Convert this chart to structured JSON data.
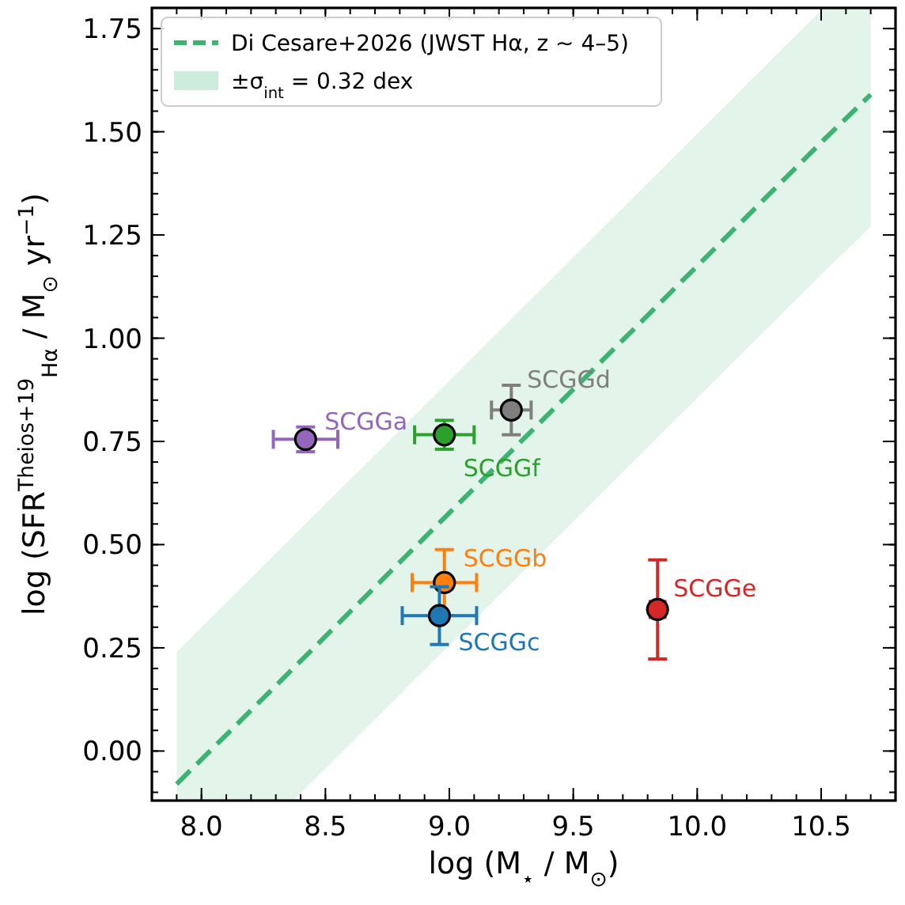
{
  "chart_data": {
    "type": "scatter",
    "xlabel": "log (M$_{⋆}$ / M$_{⊙}$)",
    "ylabel": "log (SFR$^{Theios+19}$$_{Hα}$ / M$_{⊙}$ yr$^{−1}$)",
    "xlim": [
      7.8,
      10.8
    ],
    "xticks": [
      {
        "value": 8,
        "label": "8.0"
      },
      {
        "value": 8.5,
        "label": "8.5"
      },
      {
        "value": 9,
        "label": "9.0"
      },
      {
        "value": 9.5,
        "label": "9.5"
      },
      {
        "value": 10,
        "label": "10.0"
      },
      {
        "value": 10.5,
        "label": "10.5"
      }
    ],
    "ylim": [
      -0.12,
      1.8
    ],
    "yticks": [
      {
        "value": 0,
        "label": "0.00"
      },
      {
        "value": 0.25,
        "label": "0.25"
      },
      {
        "value": 0.5,
        "label": "0.50"
      },
      {
        "value": 0.75,
        "label": "0.75"
      },
      {
        "value": 1,
        "label": "1.00"
      },
      {
        "value": 1.25,
        "label": "1.25"
      },
      {
        "value": 1.5,
        "label": "1.50"
      },
      {
        "value": 1.75,
        "label": "1.75"
      }
    ],
    "annotations": [
      "±σ$_{int}$ = 0.32 dex"
    ],
    "grid": false,
    "legend": "top left",
    "marker": "circle",
    "series": [
      {
        "type": "line",
        "name": "Di Cesare+2026 (JWST Hα, z ~ 4–5)",
        "color": "#3cb371",
        "line_style": "dashed",
        "marker": "none",
        "x": [
          7.9,
          8.37,
          10.51,
          10.7
        ],
        "values": [
          -0.08,
          0.2,
          1.48,
          1.59
        ],
        "lower": [
          -0.12,
          -0.12,
          1.16,
          1.27
        ],
        "upper": [
          0.24,
          0.52,
          1.8,
          1.8
        ]
      },
      {
        "name": "SCGGa",
        "color": "#9467bd",
        "x": [
          8.42
        ],
        "values": [
          0.755
        ],
        "errors": [
          0.03
        ],
        "xerrors": [
          0.13
        ]
      },
      {
        "name": "SCGGf",
        "color": "#2ca02c",
        "x": [
          8.98
        ],
        "values": [
          0.766
        ],
        "errors": [
          0.035
        ],
        "xerrors": [
          0.12
        ]
      },
      {
        "name": "SCGGd",
        "color": "#7f7f7f",
        "x": [
          9.25
        ],
        "values": [
          0.826
        ],
        "errors": [
          0.06
        ],
        "xerrors": [
          0.08
        ]
      },
      {
        "name": "SCGGb",
        "color": "#ff7f0e",
        "x": [
          8.98
        ],
        "values": [
          0.408
        ],
        "errors": [
          0.08
        ],
        "xerrors": [
          0.13
        ]
      },
      {
        "name": "SCGGc",
        "color": "#1f77b4",
        "x": [
          8.96
        ],
        "values": [
          0.328
        ],
        "errors": [
          0.07
        ],
        "xerrors": [
          0.15
        ]
      },
      {
        "name": "SCGGe",
        "color": "#d62728",
        "x": [
          9.84
        ],
        "values": [
          0.343
        ],
        "errors": [
          0.12
        ],
        "xerrors": [
          0.03
        ]
      }
    ]
  }
}
